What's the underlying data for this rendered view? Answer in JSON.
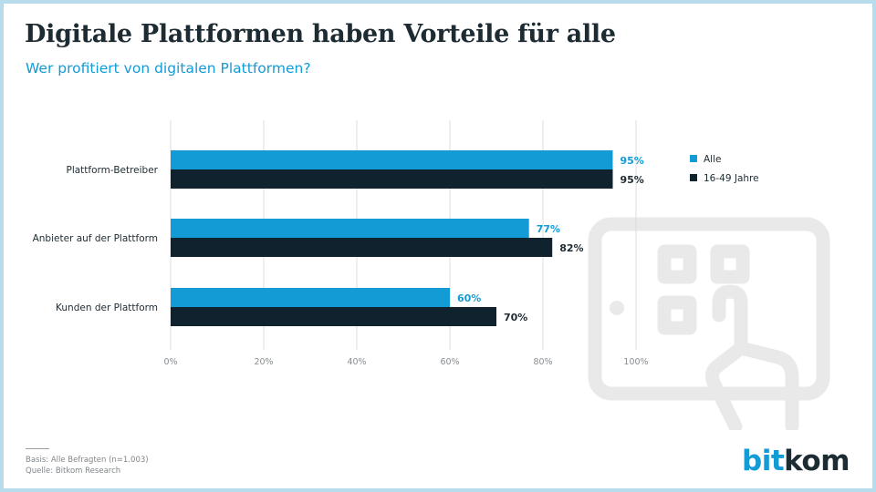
{
  "title": "Digitale Plattformen haben Vorteile für alle",
  "subtitle": "Wer profitiert von digitalen Plattformen?",
  "colors": {
    "alle": "#139bd6",
    "age": "#0f222e",
    "grid": "#dcdcdc",
    "accent": "#139bd6",
    "dark": "#1d2b33"
  },
  "chart_data": {
    "type": "bar",
    "orientation": "horizontal",
    "title": "Digitale Plattformen haben Vorteile für alle",
    "subtitle": "Wer profitiert von digitalen Plattformen?",
    "categories": [
      "Plattform-Betreiber",
      "Anbieter auf der Plattform",
      "Kunden der Plattform"
    ],
    "series": [
      {
        "name": "Alle",
        "values": [
          95,
          77,
          60
        ],
        "labels": [
          "95%",
          "77%",
          "60%"
        ]
      },
      {
        "name": "16-49 Jahre",
        "values": [
          95,
          82,
          70
        ],
        "labels": [
          "95%",
          "82%",
          "70%"
        ]
      }
    ],
    "xlim": [
      0,
      100
    ],
    "xticks": [
      "0%",
      "20%",
      "40%",
      "60%",
      "80%",
      "100%"
    ],
    "xtick_values": [
      0,
      20,
      40,
      60,
      80,
      100
    ],
    "grid": true,
    "legend": "top-right"
  },
  "footer": {
    "basis": "Basis: Alle Befragten (n=1.003)",
    "source": "Quelle: Bitkom Research"
  },
  "brand": {
    "part1": "bit",
    "part2": "kom"
  }
}
